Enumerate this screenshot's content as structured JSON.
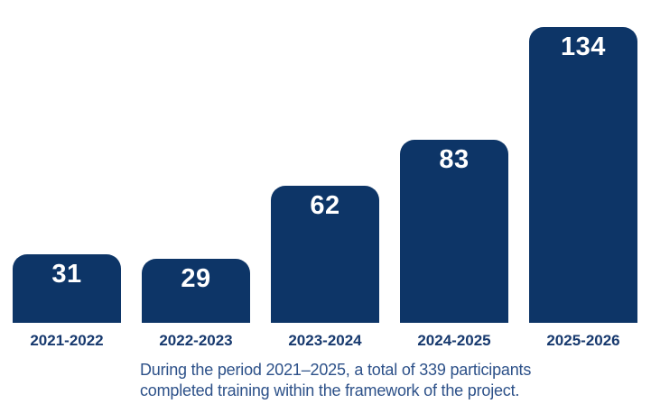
{
  "chart_data": {
    "type": "bar",
    "categories": [
      "2021-2022",
      "2022-2023",
      "2023-2024",
      "2024-2025",
      "2025-2026"
    ],
    "values": [
      31,
      29,
      62,
      83,
      134
    ],
    "title": "",
    "xlabel": "",
    "ylabel": "",
    "ylim": [
      0,
      140
    ],
    "grid": false,
    "legend": "none",
    "value_labels_shown": true,
    "bar_corner_style": "rounded-top"
  },
  "caption": {
    "lines": [
      "During the period 2021–2025, a total of 339 participants",
      "completed training within the framework of the project."
    ]
  },
  "colors": {
    "background": "#ffffff",
    "bar": "#0d3567",
    "value_label": "#ffffff",
    "category_label": "#17396e",
    "caption": "#2d5189"
  }
}
